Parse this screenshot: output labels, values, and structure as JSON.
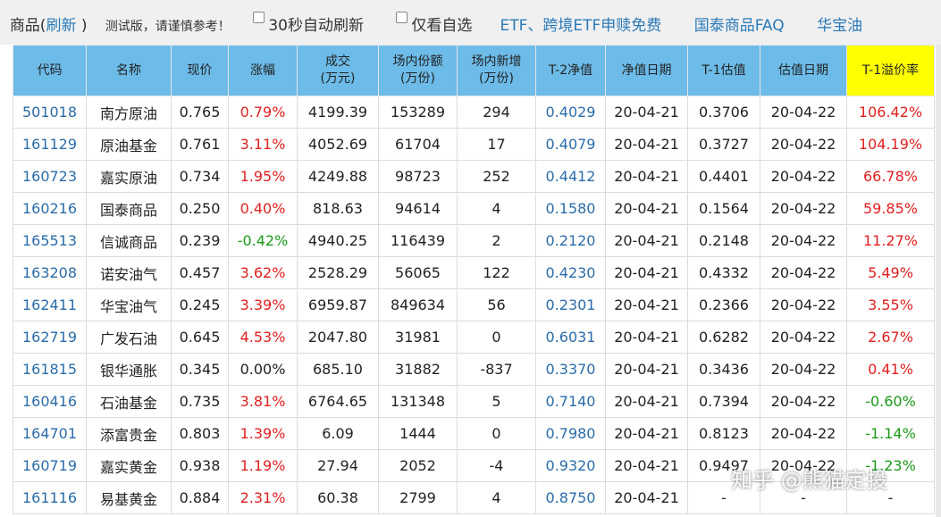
{
  "toolbar": {
    "title_prefix": "商品(",
    "refresh": "刷新",
    "title_suffix": ")",
    "note": "测试版，请谨慎参考！",
    "auto_refresh": "30秒自动刷新",
    "only_favorites": "仅看自选",
    "links": [
      "ETF、跨境ETF申赎免费",
      "国泰商品FAQ",
      "华宝油"
    ]
  },
  "table": {
    "headers": [
      [
        "代码"
      ],
      [
        "名称"
      ],
      [
        "现价"
      ],
      [
        "涨幅"
      ],
      [
        "成交",
        "(万元)"
      ],
      [
        "场内份额",
        "(万份)"
      ],
      [
        "场内新增",
        "(万份)"
      ],
      [
        "T-2净值"
      ],
      [
        "净值日期"
      ],
      [
        "T-1估值"
      ],
      [
        "估值日期"
      ],
      [
        "T-1溢价率"
      ]
    ],
    "rows": [
      [
        "501018",
        "南方原油",
        "0.765",
        "0.79%",
        "4199.39",
        "153289",
        "294",
        "0.4029",
        "20-04-21",
        "0.3706",
        "20-04-22",
        "106.42%"
      ],
      [
        "161129",
        "原油基金",
        "0.761",
        "3.11%",
        "4052.69",
        "61704",
        "17",
        "0.4079",
        "20-04-21",
        "0.3727",
        "20-04-22",
        "104.19%"
      ],
      [
        "160723",
        "嘉实原油",
        "0.734",
        "1.95%",
        "4249.88",
        "98723",
        "252",
        "0.4412",
        "20-04-21",
        "0.4401",
        "20-04-22",
        "66.78%"
      ],
      [
        "160216",
        "国泰商品",
        "0.250",
        "0.40%",
        "818.63",
        "94614",
        "4",
        "0.1580",
        "20-04-21",
        "0.1564",
        "20-04-22",
        "59.85%"
      ],
      [
        "165513",
        "信诚商品",
        "0.239",
        "-0.42%",
        "4940.25",
        "116439",
        "2",
        "0.2120",
        "20-04-21",
        "0.2148",
        "20-04-22",
        "11.27%"
      ],
      [
        "163208",
        "诺安油气",
        "0.457",
        "3.62%",
        "2528.29",
        "56065",
        "122",
        "0.4230",
        "20-04-21",
        "0.4332",
        "20-04-22",
        "5.49%"
      ],
      [
        "162411",
        "华宝油气",
        "0.245",
        "3.39%",
        "6959.87",
        "849634",
        "56",
        "0.2301",
        "20-04-21",
        "0.2366",
        "20-04-22",
        "3.55%"
      ],
      [
        "162719",
        "广发石油",
        "0.645",
        "4.53%",
        "2047.80",
        "31981",
        "0",
        "0.6031",
        "20-04-21",
        "0.6282",
        "20-04-22",
        "2.67%"
      ],
      [
        "161815",
        "银华通胀",
        "0.345",
        "0.00%",
        "685.10",
        "31882",
        "-837",
        "0.3370",
        "20-04-21",
        "0.3436",
        "20-04-22",
        "0.41%"
      ],
      [
        "160416",
        "石油基金",
        "0.735",
        "3.81%",
        "6764.65",
        "131348",
        "5",
        "0.7140",
        "20-04-21",
        "0.7394",
        "20-04-22",
        "-0.60%"
      ],
      [
        "164701",
        "添富贵金",
        "0.803",
        "1.39%",
        "6.09",
        "1444",
        "0",
        "0.7980",
        "20-04-21",
        "0.8123",
        "20-04-22",
        "-1.14%"
      ],
      [
        "160719",
        "嘉实黄金",
        "0.938",
        "1.19%",
        "27.94",
        "2052",
        "-4",
        "0.9320",
        "20-04-21",
        "0.9497",
        "20-04-22",
        "-1.23%"
      ],
      [
        "161116",
        "易基黄金",
        "0.884",
        "2.31%",
        "60.38",
        "2799",
        "4",
        "0.8750",
        "20-04-21",
        "-",
        "-",
        "-"
      ]
    ]
  },
  "watermark": "知乎 @熊猫定投"
}
